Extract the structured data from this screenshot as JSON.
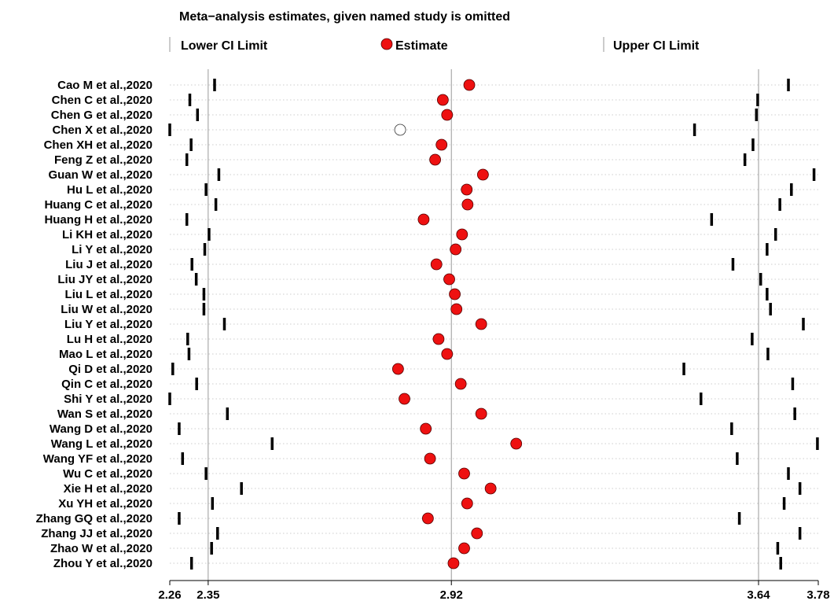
{
  "chart_data": {
    "type": "scatter",
    "title": "Meta−analysis estimates, given named study is omitted",
    "legend": {
      "placement": "top",
      "items": [
        {
          "label": "Lower CI Limit",
          "marker": "bar"
        },
        {
          "label": "Estimate",
          "marker": "filled-circle"
        },
        {
          "label": "Upper CI Limit",
          "marker": "bar"
        }
      ]
    },
    "xlim": [
      2.26,
      3.78
    ],
    "ticks": [
      2.26,
      2.35,
      2.92,
      3.64,
      3.78
    ],
    "tick_labels": [
      "2.26",
      "2.35",
      "2.92",
      "3.64",
      "3.78"
    ],
    "reference_lines": [
      2.35,
      2.92,
      3.64
    ],
    "grid": "dotted row guides",
    "colors": {
      "estimate": "#ee1111",
      "omitted_marker": "#ffffff",
      "bars": "#000000"
    },
    "studies": [
      {
        "label": "Cao M et al.,2020",
        "lower": 2.365,
        "estimate": 2.962,
        "upper": 3.71
      },
      {
        "label": "Chen C et al.,2020",
        "lower": 2.307,
        "estimate": 2.9,
        "upper": 3.638
      },
      {
        "label": "Chen G et al.,2020",
        "lower": 2.325,
        "estimate": 2.91,
        "upper": 3.635
      },
      {
        "label": "Chen X et al.,2020",
        "lower": 2.26,
        "estimate": 2.8,
        "upper": 3.49,
        "omitted": true
      },
      {
        "label": "Chen XH et al.,2020",
        "lower": 2.31,
        "estimate": 2.897,
        "upper": 3.627
      },
      {
        "label": "Feng Z et al.,2020",
        "lower": 2.3,
        "estimate": 2.882,
        "upper": 3.608
      },
      {
        "label": "Guan W et al.,2020",
        "lower": 2.375,
        "estimate": 2.994,
        "upper": 3.77
      },
      {
        "label": "Hu L et al.,2020",
        "lower": 2.345,
        "estimate": 2.956,
        "upper": 3.717
      },
      {
        "label": "Huang C et al.,2020",
        "lower": 2.368,
        "estimate": 2.958,
        "upper": 3.69
      },
      {
        "label": "Huang H et al.,2020",
        "lower": 2.3,
        "estimate": 2.855,
        "upper": 3.53
      },
      {
        "label": "Li KH et al.,2020",
        "lower": 2.352,
        "estimate": 2.945,
        "upper": 3.68
      },
      {
        "label": "Li Y et al.,2020",
        "lower": 2.342,
        "estimate": 2.93,
        "upper": 3.66
      },
      {
        "label": "Liu J et al.,2020",
        "lower": 2.312,
        "estimate": 2.885,
        "upper": 3.58
      },
      {
        "label": "Liu JY et al.,2020",
        "lower": 2.322,
        "estimate": 2.915,
        "upper": 3.645
      },
      {
        "label": "Liu L et al.,2020",
        "lower": 2.34,
        "estimate": 2.928,
        "upper": 3.66
      },
      {
        "label": "Liu W et al.,2020",
        "lower": 2.34,
        "estimate": 2.932,
        "upper": 3.668
      },
      {
        "label": "Liu Y et al.,2020",
        "lower": 2.388,
        "estimate": 2.99,
        "upper": 3.745
      },
      {
        "label": "Lu H et al.,2020",
        "lower": 2.302,
        "estimate": 2.89,
        "upper": 3.625
      },
      {
        "label": "Mao L et al.,2020",
        "lower": 2.305,
        "estimate": 2.91,
        "upper": 3.662
      },
      {
        "label": "Qi D et al.,2020",
        "lower": 2.267,
        "estimate": 2.795,
        "upper": 3.465
      },
      {
        "label": "Qin C et al.,2020",
        "lower": 2.323,
        "estimate": 2.942,
        "upper": 3.72
      },
      {
        "label": "Shi Y et al.,2020",
        "lower": 2.26,
        "estimate": 2.81,
        "upper": 3.505
      },
      {
        "label": "Wan S et al.,2020",
        "lower": 2.395,
        "estimate": 2.99,
        "upper": 3.725
      },
      {
        "label": "Wang D et al.,2020",
        "lower": 2.282,
        "estimate": 2.86,
        "upper": 3.577
      },
      {
        "label": "Wang L et al.,2020",
        "lower": 2.5,
        "estimate": 3.072,
        "upper": 3.778
      },
      {
        "label": "Wang YF et al.,2020",
        "lower": 2.29,
        "estimate": 2.87,
        "upper": 3.59
      },
      {
        "label": "Wu C et al.,2020",
        "lower": 2.345,
        "estimate": 2.95,
        "upper": 3.71
      },
      {
        "label": "Xie H et al.,2020",
        "lower": 2.428,
        "estimate": 3.012,
        "upper": 3.737
      },
      {
        "label": "Xu YH et al.,2020",
        "lower": 2.36,
        "estimate": 2.957,
        "upper": 3.7
      },
      {
        "label": "Zhang GQ et al.,2020",
        "lower": 2.282,
        "estimate": 2.865,
        "upper": 3.595
      },
      {
        "label": "Zhang JJ et al.,2020",
        "lower": 2.372,
        "estimate": 2.98,
        "upper": 3.737
      },
      {
        "label": "Zhao W et al.,2020",
        "lower": 2.358,
        "estimate": 2.95,
        "upper": 3.685
      },
      {
        "label": "Zhou Y et al.,2020",
        "lower": 2.311,
        "estimate": 2.925,
        "upper": 3.692
      }
    ]
  }
}
